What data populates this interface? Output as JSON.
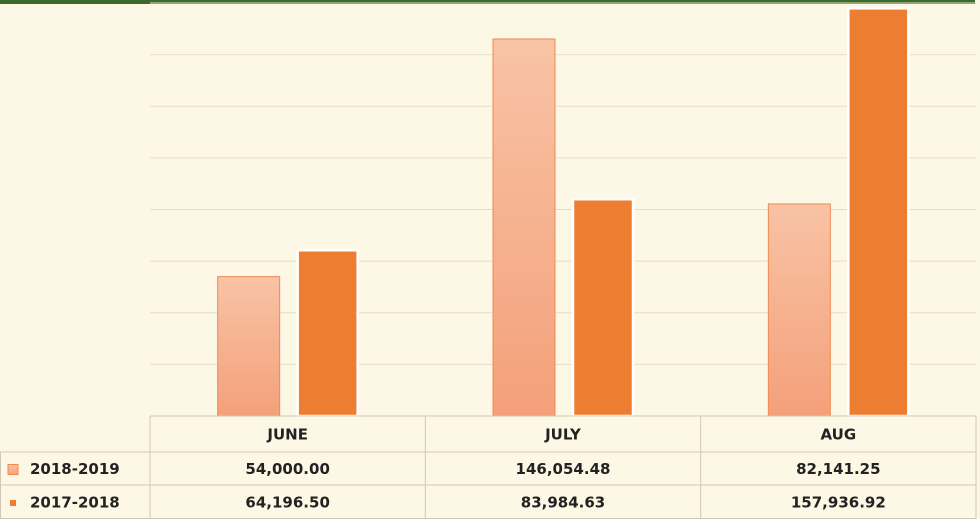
{
  "chart_data": {
    "type": "bar",
    "categories": [
      "JUNE",
      "JULY",
      "AUG"
    ],
    "series": [
      {
        "name": "2018-2019",
        "color": "#f4a47f",
        "values": [
          54000.0,
          146054.48,
          82141.25
        ],
        "value_labels": [
          "54,000.00",
          "146,054.48",
          "82,141.25"
        ]
      },
      {
        "name": "2017-2018",
        "color": "#ed7d31",
        "values": [
          64196.5,
          83984.63,
          157936.92
        ],
        "value_labels": [
          "64,196.50",
          "83,984.63",
          "157,936.92"
        ]
      }
    ],
    "ylim": [
      0,
      160000
    ],
    "yticks": [
      0,
      20000,
      40000,
      60000,
      80000,
      100000,
      120000,
      140000,
      160000
    ],
    "grid": true
  }
}
